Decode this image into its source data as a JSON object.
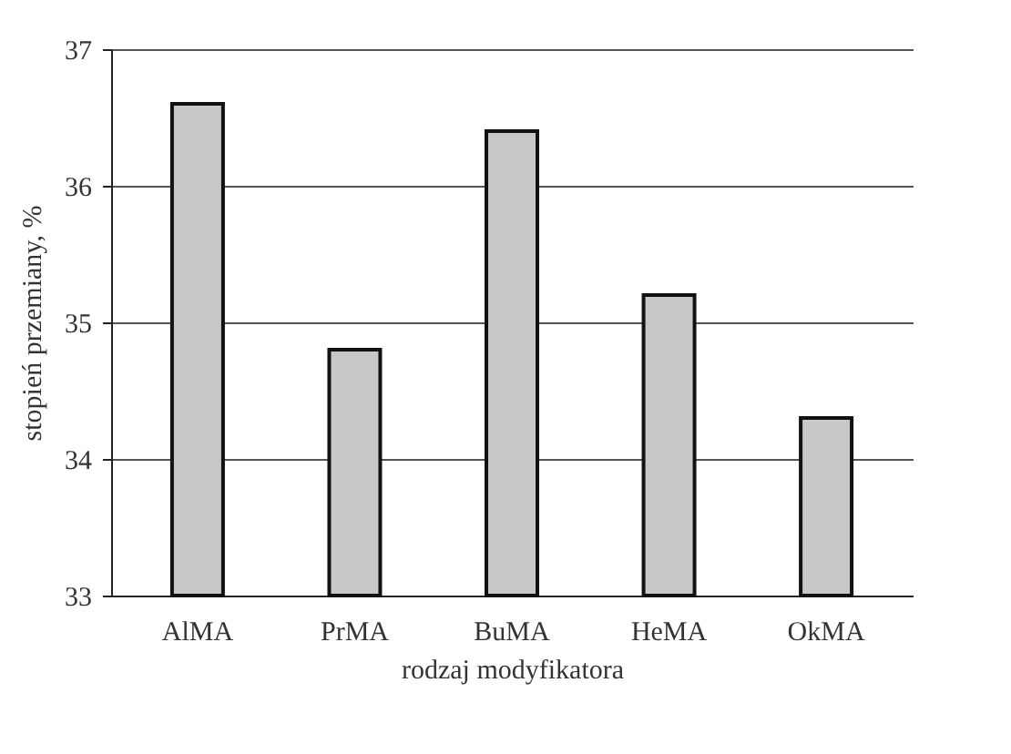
{
  "chart_data": {
    "type": "bar",
    "xlabel": "rodzaj modyfikatora",
    "ylabel": "stopień przemiany, %",
    "categories": [
      "AlMA",
      "PrMA",
      "BuMA",
      "HeMA",
      "OkMA"
    ],
    "values": [
      36.6,
      34.8,
      36.4,
      35.2,
      34.3
    ],
    "color": "#c8c8c8",
    "ylim": [
      33,
      37
    ],
    "yticks": [
      33,
      34,
      35,
      36,
      37
    ],
    "grid": "y"
  }
}
